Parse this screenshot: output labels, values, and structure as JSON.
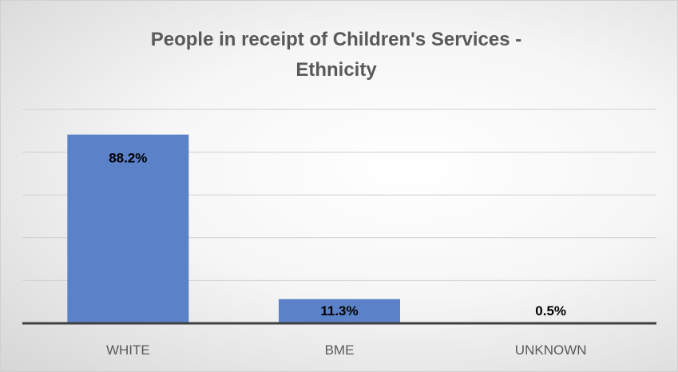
{
  "chart_data": {
    "type": "bar",
    "title": "People in receipt of Children's Services - Ethnicity",
    "title_lines": [
      "People in receipt of Children's Services -",
      "Ethnicity"
    ],
    "categories": [
      "WHITE",
      "BME",
      "UNKNOWN"
    ],
    "values": [
      88.2,
      11.3,
      0.5
    ],
    "data_labels": [
      "88.2%",
      "11.3%",
      "0.5%"
    ],
    "ylim": [
      0,
      100
    ],
    "grid": true,
    "legend": "none",
    "xlabel": "",
    "ylabel": "",
    "bar_color": "#5b82c9"
  }
}
